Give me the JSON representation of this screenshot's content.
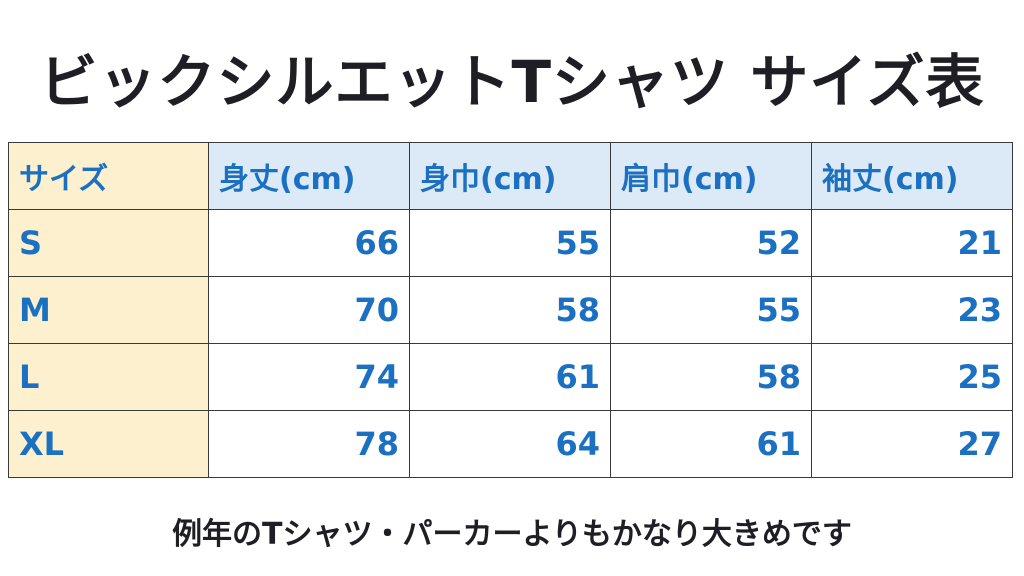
{
  "header": {
    "title": "ビックシルエットTシャツ サイズ表"
  },
  "table": {
    "columns": [
      "サイズ",
      "身丈(cm)",
      "身巾(cm)",
      "肩巾(cm)",
      "袖丈(cm)"
    ],
    "rows": [
      [
        "S",
        66,
        55,
        52,
        21
      ],
      [
        "M",
        70,
        58,
        55,
        23
      ],
      [
        "L",
        74,
        61,
        58,
        25
      ],
      [
        "XL",
        78,
        64,
        61,
        27
      ]
    ]
  },
  "footer": {
    "note": "例年のTシャツ・パーカーよりもかなり大きめです"
  }
}
